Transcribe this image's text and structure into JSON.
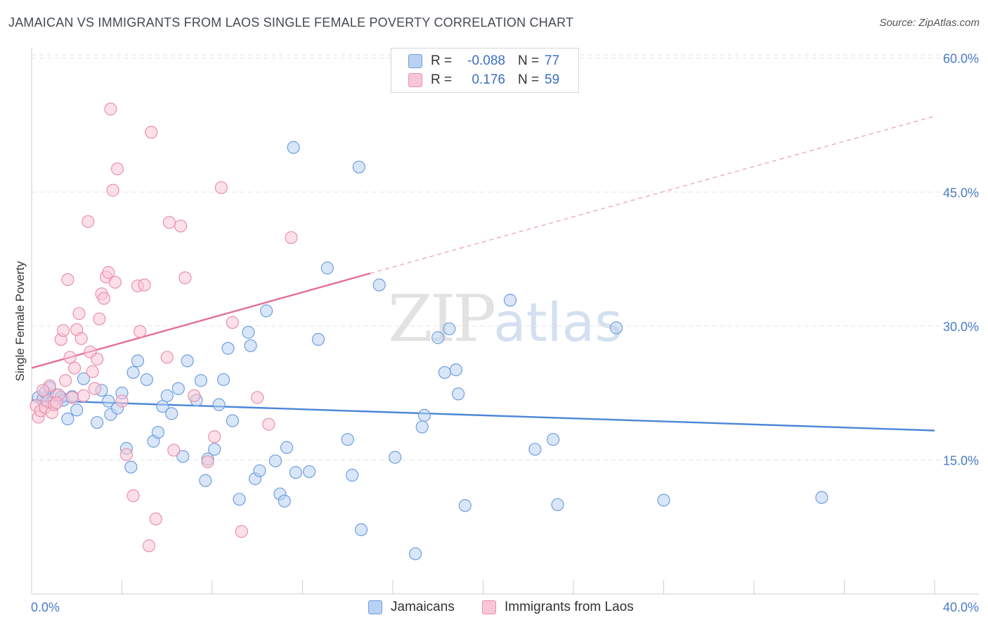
{
  "header": {
    "title": "JAMAICAN VS IMMIGRANTS FROM LAOS SINGLE FEMALE POVERTY CORRELATION CHART",
    "source": "Source: ZipAtlas.com"
  },
  "watermark": {
    "zip": "ZIP",
    "atlas": "atlas"
  },
  "legend": {
    "rows": [
      {
        "r_label": "R =",
        "r_value": "-0.088",
        "n_label": "N =",
        "n_value": "77",
        "fill": "#b9d2f3",
        "stroke": "#6f9fe0"
      },
      {
        "r_label": "R =",
        "r_value": "0.176",
        "n_label": "N =",
        "n_value": "59",
        "fill": "#f9c6d6",
        "stroke": "#eb8fac"
      }
    ]
  },
  "bottom_legend": [
    {
      "label": "Jamaicans",
      "fill": "#b9d2f3",
      "stroke": "#6f9fe0"
    },
    {
      "label": "Immigrants from Laos",
      "fill": "#f9c6d6",
      "stroke": "#eb8fac"
    }
  ],
  "chart_data": {
    "type": "scatter",
    "title": "JAMAICAN VS IMMIGRANTS FROM LAOS SINGLE FEMALE POVERTY CORRELATION CHART",
    "xlabel": "",
    "ylabel": "Single Female Poverty",
    "xlim": [
      0,
      40
    ],
    "ylim": [
      0,
      61
    ],
    "x_ticks": [
      0,
      40
    ],
    "x_tick_labels": [
      "0.0%",
      "40.0%"
    ],
    "y_ticks": [
      15,
      30,
      45,
      60
    ],
    "y_tick_labels": [
      "15.0%",
      "30.0%",
      "45.0%",
      "60.0%"
    ],
    "grid": "horizontal dashed",
    "legend_position": "top-center",
    "series": [
      {
        "name": "Jamaicans",
        "color": "#4a86d8",
        "fill": "#b9d2f3",
        "trend": {
          "x": [
            0,
            40
          ],
          "y": [
            21.7,
            18.3
          ],
          "style": "solid"
        },
        "points": [
          [
            0.3,
            22.0
          ],
          [
            0.5,
            21.8
          ],
          [
            0.6,
            22.6
          ],
          [
            0.8,
            23.1
          ],
          [
            0.9,
            21.4
          ],
          [
            1.1,
            22.3
          ],
          [
            1.3,
            22.0
          ],
          [
            1.4,
            21.7
          ],
          [
            1.6,
            19.6
          ],
          [
            1.8,
            22.1
          ],
          [
            2.0,
            20.6
          ],
          [
            2.3,
            24.1
          ],
          [
            2.9,
            19.2
          ],
          [
            3.1,
            22.8
          ],
          [
            3.4,
            21.6
          ],
          [
            3.5,
            20.1
          ],
          [
            3.8,
            20.8
          ],
          [
            4.0,
            22.5
          ],
          [
            4.2,
            16.3
          ],
          [
            4.4,
            14.2
          ],
          [
            4.5,
            24.8
          ],
          [
            4.7,
            26.1
          ],
          [
            5.1,
            24.0
          ],
          [
            5.4,
            17.1
          ],
          [
            5.6,
            18.1
          ],
          [
            5.8,
            21.0
          ],
          [
            6.0,
            22.2
          ],
          [
            6.2,
            20.2
          ],
          [
            6.5,
            23.0
          ],
          [
            6.7,
            15.4
          ],
          [
            6.9,
            26.1
          ],
          [
            7.3,
            21.7
          ],
          [
            7.5,
            23.9
          ],
          [
            7.7,
            12.7
          ],
          [
            7.8,
            15.1
          ],
          [
            8.1,
            16.2
          ],
          [
            8.3,
            21.2
          ],
          [
            8.5,
            24.0
          ],
          [
            8.7,
            27.5
          ],
          [
            8.9,
            19.4
          ],
          [
            9.2,
            10.6
          ],
          [
            9.6,
            29.3
          ],
          [
            9.7,
            27.8
          ],
          [
            9.9,
            12.9
          ],
          [
            10.1,
            13.8
          ],
          [
            10.4,
            31.7
          ],
          [
            10.8,
            14.9
          ],
          [
            11.0,
            11.2
          ],
          [
            11.2,
            10.4
          ],
          [
            11.3,
            16.4
          ],
          [
            11.6,
            50.0
          ],
          [
            11.7,
            13.6
          ],
          [
            12.3,
            13.7
          ],
          [
            12.7,
            28.5
          ],
          [
            13.1,
            36.5
          ],
          [
            14.0,
            17.3
          ],
          [
            14.2,
            13.3
          ],
          [
            14.5,
            47.8
          ],
          [
            14.6,
            7.2
          ],
          [
            15.4,
            34.6
          ],
          [
            16.1,
            15.3
          ],
          [
            17.3,
            18.7
          ],
          [
            17.4,
            20.0
          ],
          [
            18.0,
            28.7
          ],
          [
            18.3,
            24.8
          ],
          [
            18.5,
            29.7
          ],
          [
            18.8,
            25.1
          ],
          [
            18.9,
            22.4
          ],
          [
            19.2,
            9.9
          ],
          [
            21.2,
            32.9
          ],
          [
            22.3,
            16.2
          ],
          [
            23.1,
            17.3
          ],
          [
            23.3,
            10.0
          ],
          [
            25.9,
            29.8
          ],
          [
            28.0,
            10.5
          ],
          [
            35.0,
            10.8
          ],
          [
            17.0,
            4.5
          ]
        ]
      },
      {
        "name": "Immigrants from Laos",
        "color": "#e46f98",
        "fill": "#f9c6d6",
        "trend": {
          "x": [
            0,
            15
          ],
          "y": [
            25.3,
            35.9
          ],
          "x_dashed": [
            15,
            40
          ],
          "y_dashed": [
            35.9,
            53.5
          ]
        },
        "points": [
          [
            0.2,
            21.1
          ],
          [
            0.3,
            19.8
          ],
          [
            0.4,
            20.5
          ],
          [
            0.6,
            20.9
          ],
          [
            0.7,
            21.6
          ],
          [
            0.8,
            23.3
          ],
          [
            0.9,
            20.3
          ],
          [
            1.0,
            21.2
          ],
          [
            1.2,
            22.3
          ],
          [
            1.3,
            28.5
          ],
          [
            1.4,
            29.5
          ],
          [
            1.5,
            23.9
          ],
          [
            1.6,
            35.2
          ],
          [
            1.7,
            26.5
          ],
          [
            1.8,
            22.0
          ],
          [
            1.9,
            25.3
          ],
          [
            2.0,
            29.6
          ],
          [
            2.1,
            31.4
          ],
          [
            2.2,
            28.6
          ],
          [
            2.3,
            22.2
          ],
          [
            2.5,
            41.7
          ],
          [
            2.6,
            27.1
          ],
          [
            2.7,
            24.9
          ],
          [
            2.8,
            23.0
          ],
          [
            2.9,
            26.3
          ],
          [
            3.0,
            30.8
          ],
          [
            3.1,
            33.6
          ],
          [
            3.2,
            33.1
          ],
          [
            3.3,
            35.5
          ],
          [
            3.4,
            36.0
          ],
          [
            3.5,
            54.3
          ],
          [
            3.6,
            45.2
          ],
          [
            3.7,
            34.9
          ],
          [
            3.8,
            47.6
          ],
          [
            4.0,
            21.6
          ],
          [
            4.2,
            15.6
          ],
          [
            4.5,
            11.0
          ],
          [
            4.7,
            34.5
          ],
          [
            4.8,
            29.4
          ],
          [
            5.0,
            34.6
          ],
          [
            5.2,
            5.4
          ],
          [
            5.3,
            51.7
          ],
          [
            5.5,
            8.4
          ],
          [
            6.0,
            26.5
          ],
          [
            6.1,
            41.6
          ],
          [
            6.3,
            16.1
          ],
          [
            6.6,
            41.2
          ],
          [
            6.8,
            35.4
          ],
          [
            7.2,
            22.2
          ],
          [
            7.8,
            14.8
          ],
          [
            8.1,
            17.6
          ],
          [
            8.4,
            45.5
          ],
          [
            8.9,
            30.4
          ],
          [
            9.3,
            7.0
          ],
          [
            10.0,
            22.0
          ],
          [
            10.5,
            19.0
          ],
          [
            11.5,
            39.9
          ],
          [
            0.5,
            22.8
          ],
          [
            1.1,
            21.4
          ]
        ]
      }
    ]
  }
}
